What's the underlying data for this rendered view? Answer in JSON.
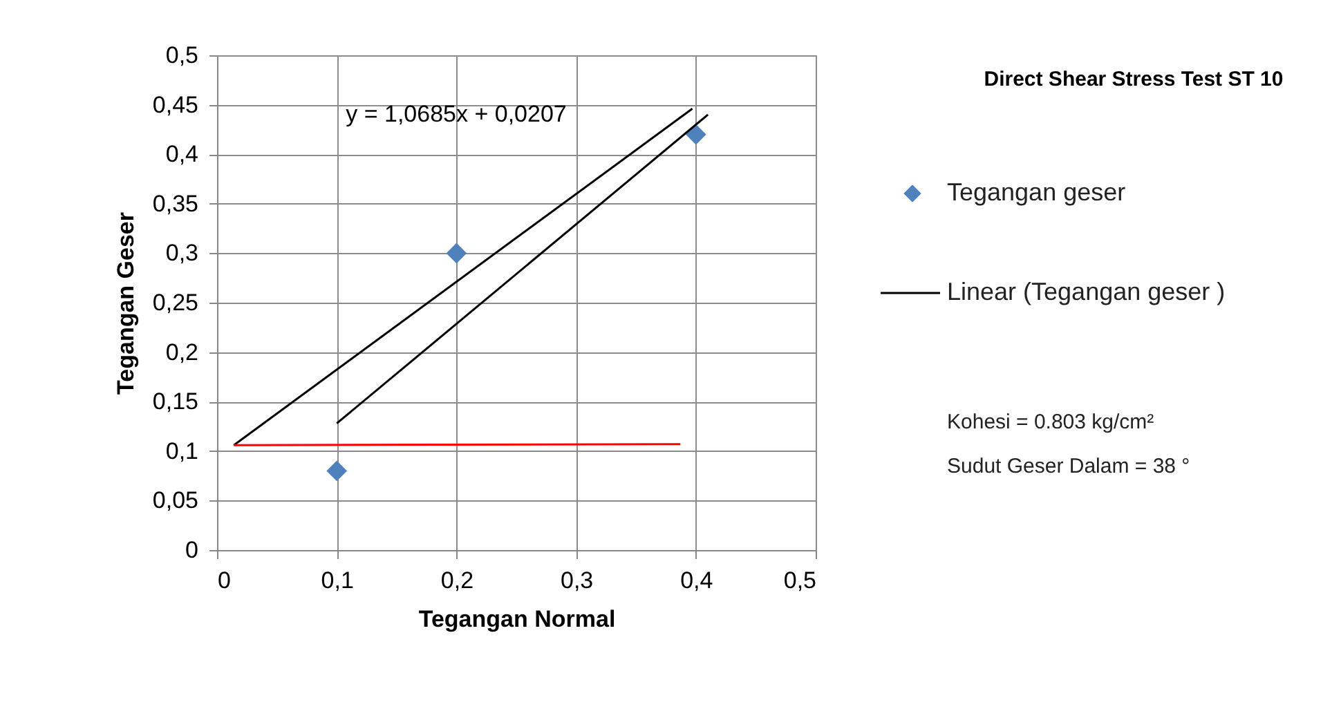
{
  "chart_data": {
    "type": "scatter",
    "title": "Direct Shear Stress Test ST 10",
    "xlabel": "Tegangan Normal",
    "ylabel": "Tegangan Geser",
    "xlim": [
      0,
      0.5
    ],
    "ylim": [
      0,
      0.5
    ],
    "xticks": [
      0,
      {
        "value": 0.1,
        "label": "0,1"
      },
      {
        "value": 0.2,
        "label": "0,2"
      },
      {
        "value": 0.3,
        "label": "0,3"
      },
      {
        "value": 0.4,
        "label": "0,4"
      },
      {
        "value": 0.5,
        "label": "0,5"
      }
    ],
    "yticks": [
      0,
      {
        "value": 0.05,
        "label": "0,05"
      },
      {
        "value": 0.1,
        "label": "0,1"
      },
      {
        "value": 0.15,
        "label": "0,15"
      },
      {
        "value": 0.2,
        "label": "0,2"
      },
      {
        "value": 0.25,
        "label": "0,25"
      },
      {
        "value": 0.3,
        "label": "0,3"
      },
      {
        "value": 0.35,
        "label": "0,35"
      },
      {
        "value": 0.4,
        "label": "0,4"
      },
      {
        "value": 0.45,
        "label": "0,45"
      },
      {
        "value": 0.5,
        "label": "0,5"
      }
    ],
    "series": [
      {
        "name": "Tegangan geser",
        "marker": "diamond",
        "color": "#4f81bd",
        "x": [
          0.1,
          0.2,
          0.4
        ],
        "values": [
          0.08,
          0.3,
          0.42
        ]
      },
      {
        "name": "Linear (Tegangan geser )",
        "type": "line",
        "color": "#000000",
        "x": [
          0.1,
          0.41
        ],
        "values": [
          0.128,
          0.44
        ]
      },
      {
        "type": "line",
        "color": "#000000",
        "x": [
          0.014,
          0.397
        ],
        "values": [
          0.106,
          0.446
        ]
      },
      {
        "type": "line",
        "color": "#ff0000",
        "x": [
          0.014,
          0.387
        ],
        "values": [
          0.106,
          0.107
        ]
      }
    ],
    "annotations": [
      "y = 1,0685x + 0,0207",
      "Kohesi = 0.803 kg/cm²",
      "Sudut Geser Dalam = 38 °"
    ],
    "grid": true,
    "legend": "right"
  }
}
